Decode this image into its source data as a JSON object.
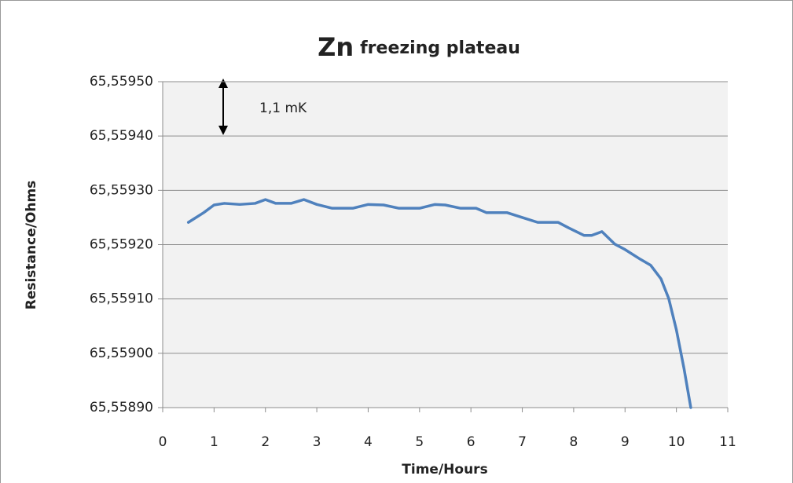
{
  "chart_data": {
    "type": "line",
    "title_main": "Zn",
    "title_sub": "freezing plateau",
    "x_label": "Time/Hours",
    "y_label": "Resistance/Ohms",
    "annotation": "1,1 mK",
    "color": "#4f81bd",
    "x": [
      0.5,
      0.8,
      1.0,
      1.2,
      1.5,
      1.8,
      2.0,
      2.2,
      2.5,
      2.75,
      3.0,
      3.3,
      3.7,
      4.0,
      4.3,
      4.6,
      5.0,
      5.3,
      5.5,
      5.8,
      6.1,
      6.3,
      6.7,
      7.0,
      7.3,
      7.7,
      7.9,
      8.2,
      8.35,
      8.55,
      8.8,
      9.0,
      9.3,
      9.5,
      9.7,
      9.85,
      10.0,
      10.15,
      10.28
    ],
    "values": [
      65.559241,
      65.559259,
      65.559273,
      65.559276,
      65.559274,
      65.559276,
      65.559283,
      65.559276,
      65.559276,
      65.559283,
      65.559274,
      65.559267,
      65.559267,
      65.559274,
      65.559273,
      65.559267,
      65.559267,
      65.559274,
      65.559273,
      65.559267,
      65.559267,
      65.559259,
      65.559259,
      65.55925,
      65.559241,
      65.559241,
      65.559231,
      65.559217,
      65.559217,
      65.559224,
      65.559201,
      65.559191,
      65.559173,
      65.559162,
      65.559137,
      65.559101,
      65.559043,
      65.558971,
      65.5589
    ],
    "xlim": [
      0,
      11
    ],
    "xticks": [
      0,
      1,
      2,
      3,
      4,
      5,
      6,
      7,
      8,
      9,
      10,
      11
    ],
    "ylim": [
      65.5589,
      65.5595
    ],
    "yticks": [
      {
        "value": 65.5589,
        "label": "65,55890"
      },
      {
        "value": 65.559,
        "label": "65,55900"
      },
      {
        "value": 65.5591,
        "label": "65,55910"
      },
      {
        "value": 65.5592,
        "label": "65,55920"
      },
      {
        "value": 65.5593,
        "label": "65,55930"
      },
      {
        "value": 65.5594,
        "label": "65,55940"
      },
      {
        "value": 65.5595,
        "label": "65,55950"
      }
    ],
    "grid": true
  }
}
